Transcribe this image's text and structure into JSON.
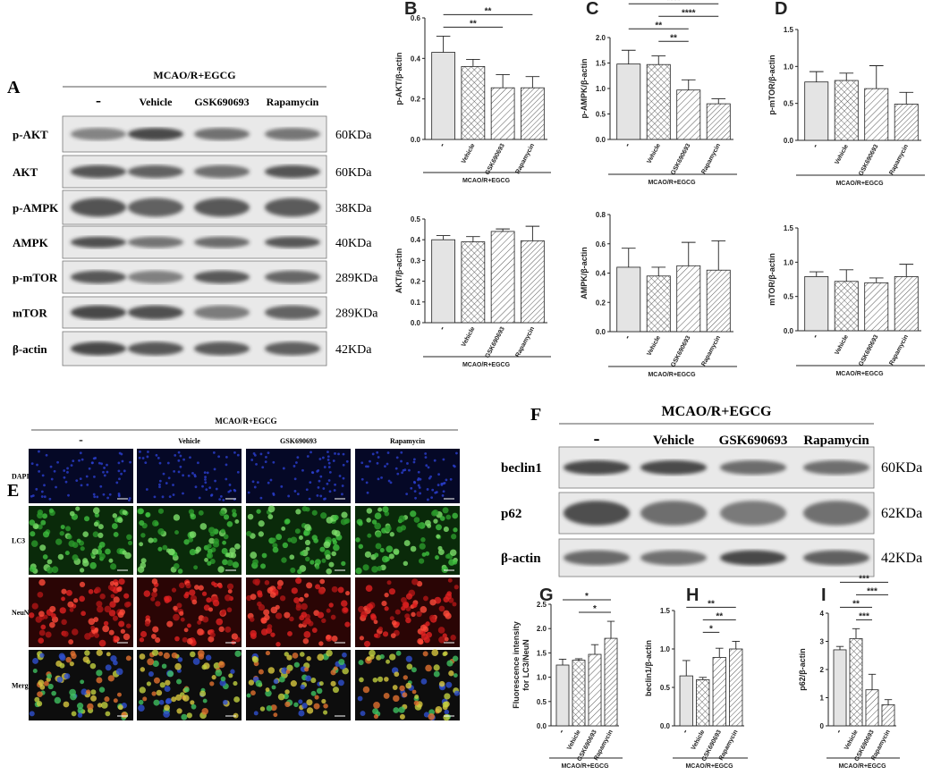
{
  "western_blot_a": {
    "panel": "A",
    "header": "MCAO/R+EGCG",
    "columns": [
      "-",
      "Vehicle",
      "GSK690693",
      "Rapamycin"
    ],
    "rows": [
      {
        "label": "p-AKT",
        "size": "60KDa"
      },
      {
        "label": "AKT",
        "size": "60KDa"
      },
      {
        "label": "p-AMPK",
        "size": "38KDa"
      },
      {
        "label": "AMPK",
        "size": "40KDa"
      },
      {
        "label": "p-mTOR",
        "size": "289KDa"
      },
      {
        "label": "mTOR",
        "size": "289KDa"
      },
      {
        "label": "β-actin",
        "size": "42KDa"
      }
    ]
  },
  "immunofluorescence_e": {
    "panel": "E",
    "header": "MCAO/R+EGCG",
    "columns": [
      "-",
      "Vehicle",
      "GSK690693",
      "Rapamycin"
    ],
    "rows": [
      "DAPI",
      "LC3",
      "NeuN",
      "Merge"
    ]
  },
  "western_blot_f": {
    "panel": "F",
    "header": "MCAO/R+EGCG",
    "columns": [
      "-",
      "Vehicle",
      "GSK690693",
      "Rapamycin"
    ],
    "rows": [
      {
        "label": "beclin1",
        "size": "60KDa"
      },
      {
        "label": "p62",
        "size": "62KDa"
      },
      {
        "label": "β-actin",
        "size": "42KDa"
      }
    ]
  },
  "chart_data": [
    {
      "type": "bar",
      "panel": "B",
      "ylabel": "p-AKT/β-actin",
      "categories": [
        "-",
        "Vehicle",
        "GSK690693",
        "Rapamycin"
      ],
      "group_label": "MCAO/R+EGCG",
      "color": "#e4e4e4",
      "values": [
        0.43,
        0.36,
        0.255,
        0.255
      ],
      "errors": [
        0.08,
        0.035,
        0.065,
        0.055
      ],
      "ylim": [
        0,
        0.6
      ],
      "yticks": [
        {
          "value": 0,
          "label": "0.0"
        },
        {
          "value": 0.2,
          "label": "0.2"
        },
        {
          "value": 0.4,
          "label": "0.4"
        },
        {
          "value": 0.6,
          "label": "0.6"
        }
      ],
      "significance": [
        {
          "from": 0,
          "to": 2,
          "label": "**"
        },
        {
          "from": 0,
          "to": 3,
          "label": "**"
        }
      ]
    },
    {
      "type": "bar",
      "ylabel": "AKT/β-actin",
      "categories": [
        "-",
        "Vehicle",
        "GSK690693",
        "Rapamycin"
      ],
      "group_label": "MCAO/R+EGCG",
      "color": "#e4e4e4",
      "values": [
        0.4,
        0.39,
        0.44,
        0.395
      ],
      "errors": [
        0.02,
        0.025,
        0.012,
        0.07
      ],
      "ylim": [
        0,
        0.5
      ],
      "yticks": [
        {
          "value": 0,
          "label": "0.0"
        },
        {
          "value": 0.1,
          "label": "0.1"
        },
        {
          "value": 0.2,
          "label": "0.2"
        },
        {
          "value": 0.3,
          "label": "0.3"
        },
        {
          "value": 0.4,
          "label": "0.4"
        },
        {
          "value": 0.5,
          "label": "0.5"
        }
      ]
    },
    {
      "type": "bar",
      "panel": "C",
      "ylabel": "p-AMPK/β-actin",
      "categories": [
        "-",
        "Vehicle",
        "GSK690693",
        "Rapamycin"
      ],
      "group_label": "MCAO/R+EGCG",
      "color": "#e4e4e4",
      "values": [
        1.48,
        1.47,
        0.97,
        0.7
      ],
      "errors": [
        0.27,
        0.17,
        0.2,
        0.1
      ],
      "ylim": [
        0,
        2
      ],
      "yticks": [
        {
          "value": 0,
          "label": "0.0"
        },
        {
          "value": 0.5,
          "label": "0.5"
        },
        {
          "value": 1,
          "label": "1.0"
        },
        {
          "value": 1.5,
          "label": "1.5"
        },
        {
          "value": 2,
          "label": "2.0"
        }
      ],
      "significance": [
        {
          "from": 1,
          "to": 2,
          "label": "**"
        },
        {
          "from": 0,
          "to": 2,
          "label": "**"
        },
        {
          "from": 1,
          "to": 3,
          "label": "****"
        },
        {
          "from": 0,
          "to": 3,
          "label": "****"
        }
      ]
    },
    {
      "type": "bar",
      "ylabel": "AMPK/β-actin",
      "categories": [
        "-",
        "Vehicle",
        "GSK690693",
        "Rapamycin"
      ],
      "group_label": "MCAO/R+EGCG",
      "color": "#e4e4e4",
      "values": [
        0.44,
        0.38,
        0.45,
        0.42
      ],
      "errors": [
        0.13,
        0.06,
        0.16,
        0.2
      ],
      "ylim": [
        0,
        0.8
      ],
      "yticks": [
        {
          "value": 0,
          "label": "0.0"
        },
        {
          "value": 0.2,
          "label": "0.2"
        },
        {
          "value": 0.4,
          "label": "0.4"
        },
        {
          "value": 0.6,
          "label": "0.6"
        },
        {
          "value": 0.8,
          "label": "0.8"
        }
      ]
    },
    {
      "type": "bar",
      "panel": "D",
      "ylabel": "p-mTOR/β-actin",
      "categories": [
        "-",
        "Vehicle",
        "GSK690693",
        "Rapamycin"
      ],
      "group_label": "MCAO/R+EGCG",
      "color": "#e4e4e4",
      "values": [
        0.79,
        0.81,
        0.7,
        0.49
      ],
      "errors": [
        0.14,
        0.1,
        0.31,
        0.16
      ],
      "ylim": [
        0,
        1.5
      ],
      "yticks": [
        {
          "value": 0,
          "label": "0.0"
        },
        {
          "value": 0.5,
          "label": "0.5"
        },
        {
          "value": 1,
          "label": "1.0"
        },
        {
          "value": 1.5,
          "label": "1.5"
        }
      ]
    },
    {
      "type": "bar",
      "ylabel": "mTOR/β-actin",
      "categories": [
        "-",
        "Vehicle",
        "GSK690693",
        "Rapamycin"
      ],
      "group_label": "MCAO/R+EGCG",
      "color": "#e4e4e4",
      "values": [
        0.79,
        0.72,
        0.7,
        0.79
      ],
      "errors": [
        0.07,
        0.17,
        0.07,
        0.18
      ],
      "ylim": [
        0,
        1.5
      ],
      "yticks": [
        {
          "value": 0,
          "label": "0.0"
        },
        {
          "value": 0.5,
          "label": "0.5"
        },
        {
          "value": 1,
          "label": "1.0"
        },
        {
          "value": 1.5,
          "label": "1.5"
        }
      ]
    },
    {
      "type": "bar",
      "panel": "G",
      "ylabel": [
        "Fluorescence intensity",
        "for LC3/NeuN"
      ],
      "categories": [
        "-",
        "Vehicle",
        "GSK690693",
        "Rapamycin"
      ],
      "group_label": "MCAO/R+EGCG",
      "color": "#e4e4e4",
      "values": [
        1.25,
        1.35,
        1.47,
        1.8
      ],
      "errors": [
        0.12,
        0.03,
        0.2,
        0.35
      ],
      "ylim": [
        0,
        2.5
      ],
      "yticks": [
        {
          "value": 0,
          "label": "0.0"
        },
        {
          "value": 0.5,
          "label": "0.5"
        },
        {
          "value": 1,
          "label": "1.0"
        },
        {
          "value": 1.5,
          "label": "1.5"
        },
        {
          "value": 2,
          "label": "2.0"
        },
        {
          "value": 2.5,
          "label": "2.5"
        }
      ],
      "significance": [
        {
          "from": 1,
          "to": 3,
          "label": "*"
        },
        {
          "from": 0,
          "to": 3,
          "label": "*"
        }
      ]
    },
    {
      "type": "bar",
      "panel": "H",
      "ylabel": "beclin1/β-actin",
      "categories": [
        "-",
        "Vehicle",
        "GSK690693",
        "Rapamycin"
      ],
      "group_label": "MCAO/R+EGCG",
      "color": "#e4e4e4",
      "values": [
        0.65,
        0.6,
        0.89,
        1.0
      ],
      "errors": [
        0.2,
        0.03,
        0.12,
        0.1
      ],
      "ylim": [
        0,
        1.5
      ],
      "yticks": [
        {
          "value": 0,
          "label": "0.0"
        },
        {
          "value": 0.5,
          "label": "0.5"
        },
        {
          "value": 1,
          "label": "1.0"
        },
        {
          "value": 1.5,
          "label": "1.5"
        }
      ],
      "significance": [
        {
          "from": 1,
          "to": 2,
          "label": "*"
        },
        {
          "from": 1,
          "to": 3,
          "label": "**"
        },
        {
          "from": 0,
          "to": 3,
          "label": "**"
        }
      ]
    },
    {
      "type": "bar",
      "panel": "I",
      "ylabel": "p62/β-actin",
      "categories": [
        "-",
        "Vehicle",
        "GSK690693",
        "Rapamycin"
      ],
      "group_label": "MCAO/R+EGCG",
      "color": "#e4e4e4",
      "values": [
        2.7,
        3.1,
        1.28,
        0.75
      ],
      "errors": [
        0.12,
        0.35,
        0.55,
        0.18
      ],
      "ylim": [
        0,
        4
      ],
      "yticks": [
        0,
        1,
        2,
        3,
        4
      ],
      "significance": [
        {
          "from": 1,
          "to": 2,
          "label": "***"
        },
        {
          "from": 0,
          "to": 2,
          "label": "**"
        },
        {
          "from": 1,
          "to": 3,
          "label": "***"
        },
        {
          "from": 0,
          "to": 3,
          "label": "***"
        }
      ]
    }
  ]
}
